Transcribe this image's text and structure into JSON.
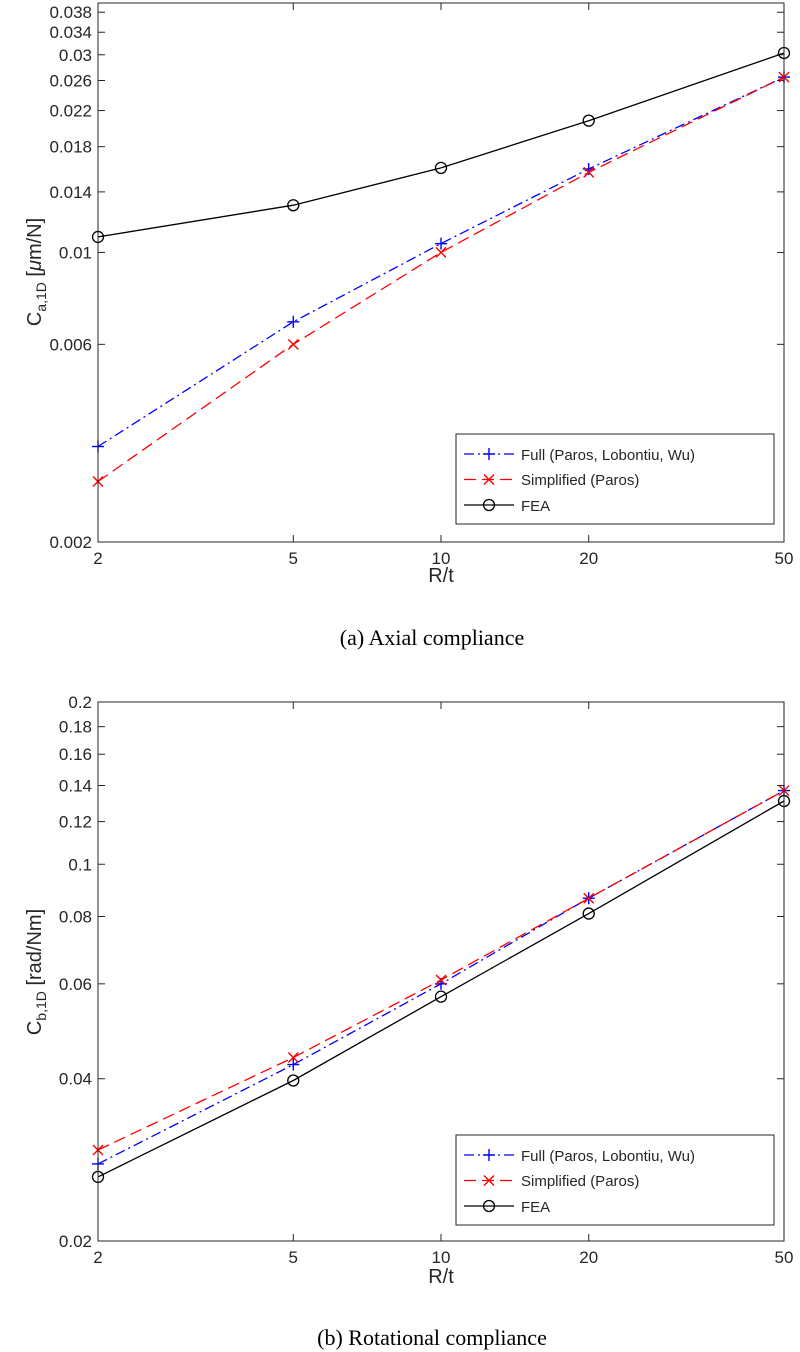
{
  "colors": {
    "full": "#0000ff",
    "simplified": "#ff0000",
    "fea": "#000000",
    "axis": "#262626"
  },
  "chart_data": [
    {
      "type": "line",
      "caption": "(a) Axial compliance",
      "xlabel": "R/t",
      "ylabel_main": "C",
      "ylabel_sub": "a,1D",
      "ylabel_unit_pre": " [",
      "ylabel_unit_greek": "μ",
      "ylabel_unit_post": "m/N]",
      "xscale": "log",
      "yscale": "log",
      "xlim": [
        2,
        50
      ],
      "ylim": [
        0.002,
        0.04
      ],
      "xticks": [
        2,
        5,
        10,
        20,
        50
      ],
      "xtick_labels": [
        "2",
        "5",
        "10",
        "20",
        "50"
      ],
      "yticks": [
        0.002,
        0.006,
        0.01,
        0.014,
        0.018,
        0.022,
        0.026,
        0.03,
        0.034,
        0.038
      ],
      "ytick_labels": [
        "0.002",
        "0.006",
        "0.01",
        "0.014",
        "0.018",
        "0.022",
        "0.026",
        "0.03",
        "0.034",
        "0.038"
      ],
      "x": [
        2,
        5,
        10,
        20,
        50
      ],
      "legend_position": "bottom-right",
      "series": [
        {
          "name": "Full (Paros, Lobontiu, Wu)",
          "values": [
            0.0034,
            0.0068,
            0.0105,
            0.0159,
            0.0265
          ],
          "color": "#0000ff",
          "marker": "plus",
          "dash": "dashdot"
        },
        {
          "name": "Simplified (Paros)",
          "values": [
            0.0028,
            0.006,
            0.01,
            0.0156,
            0.0265
          ],
          "color": "#ff0000",
          "marker": "x",
          "dash": "dashed"
        },
        {
          "name": "FEA",
          "values": [
            0.0109,
            0.013,
            0.016,
            0.0208,
            0.0303
          ],
          "color": "#000000",
          "marker": "circle",
          "dash": "solid"
        }
      ]
    },
    {
      "type": "line",
      "caption": "(b) Rotational compliance",
      "xlabel": "R/t",
      "ylabel_main": "C",
      "ylabel_sub": "b,1D",
      "ylabel_unit_pre": " [",
      "ylabel_unit_greek": "",
      "ylabel_unit_post": "rad/Nm]",
      "xscale": "log",
      "yscale": "log",
      "xlim": [
        2,
        50
      ],
      "ylim": [
        0.02,
        0.2
      ],
      "xticks": [
        2,
        5,
        10,
        20,
        50
      ],
      "xtick_labels": [
        "2",
        "5",
        "10",
        "20",
        "50"
      ],
      "yticks": [
        0.02,
        0.04,
        0.06,
        0.08,
        0.1,
        0.12,
        0.14,
        0.16,
        0.18,
        0.2
      ],
      "ytick_labels": [
        "0.02",
        "0.04",
        "0.06",
        "0.08",
        "0.1",
        "0.12",
        "0.14",
        "0.16",
        "0.18",
        "0.2"
      ],
      "x": [
        2,
        5,
        10,
        20,
        50
      ],
      "legend_position": "bottom-right",
      "series": [
        {
          "name": "Full (Paros, Lobontiu, Wu)",
          "values": [
            0.0278,
            0.0425,
            0.06,
            0.0865,
            0.137
          ],
          "color": "#0000ff",
          "marker": "plus",
          "dash": "dashdot"
        },
        {
          "name": "Simplified (Paros)",
          "values": [
            0.0295,
            0.0438,
            0.061,
            0.0865,
            0.137
          ],
          "color": "#ff0000",
          "marker": "x",
          "dash": "dashed"
        },
        {
          "name": "FEA",
          "values": [
            0.0263,
            0.0397,
            0.0568,
            0.081,
            0.131
          ],
          "color": "#000000",
          "marker": "circle",
          "dash": "solid"
        }
      ]
    }
  ]
}
